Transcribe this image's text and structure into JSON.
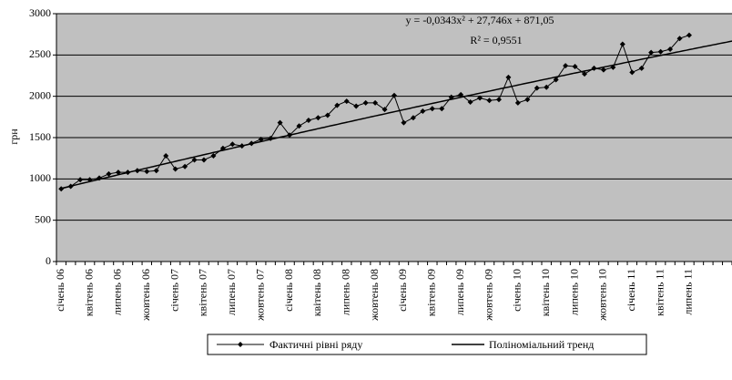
{
  "chart_data": {
    "type": "line",
    "ylabel": "грн",
    "categories": [
      "січень 06",
      null,
      null,
      "квітень 06",
      null,
      null,
      "липень 06",
      null,
      null,
      "жовтень 06",
      null,
      null,
      "січень 07",
      null,
      null,
      "квітень 07",
      null,
      null,
      "липень 07",
      null,
      null,
      "жовтень 07",
      null,
      null,
      "січень 08",
      null,
      null,
      "квітень 08",
      null,
      null,
      "липень 08",
      null,
      null,
      "жовтень 08",
      null,
      null,
      "січень 09",
      null,
      null,
      "квітень 09",
      null,
      null,
      "липень 09",
      null,
      null,
      "жовтень 09",
      null,
      null,
      "січень 10",
      null,
      null,
      "квітень 10",
      null,
      null,
      "липень 10",
      null,
      null,
      "жовтень 10",
      null,
      null,
      "січень 11",
      null,
      null,
      "квітень 11",
      null,
      null,
      "липень 11",
      null,
      null,
      null,
      null
    ],
    "series": [
      {
        "name": "Фактичні рівні ряду",
        "color": "#000000",
        "values": [
          880,
          910,
          990,
          990,
          1010,
          1060,
          1080,
          1080,
          1100,
          1090,
          1100,
          1280,
          1120,
          1150,
          1230,
          1230,
          1280,
          1370,
          1420,
          1400,
          1430,
          1480,
          1490,
          1680,
          1530,
          1640,
          1710,
          1740,
          1770,
          1890,
          1940,
          1880,
          1920,
          1920,
          1840,
          2010,
          1680,
          1740,
          1820,
          1850,
          1850,
          1990,
          2020,
          1930,
          1980,
          1950,
          1960,
          2230,
          1920,
          1960,
          2100,
          2110,
          2200,
          2370,
          2360,
          2270,
          2340,
          2320,
          2350,
          2630,
          2290,
          2340,
          2530,
          2540,
          2570,
          2700,
          2740,
          null,
          null,
          null,
          null
        ]
      }
    ],
    "trend": {
      "name": "Поліноміальний тренд",
      "color": "#000000",
      "coefficients": [
        -0.0343,
        27.746,
        871.05
      ],
      "equation": "y = -0,0343x² + 27,746x + 871,05",
      "r2": "R² = 0,9551"
    },
    "ylim": [
      0,
      3000
    ],
    "yticks": [
      0,
      500,
      1000,
      1500,
      2000,
      2500,
      3000
    ],
    "grid": true
  }
}
